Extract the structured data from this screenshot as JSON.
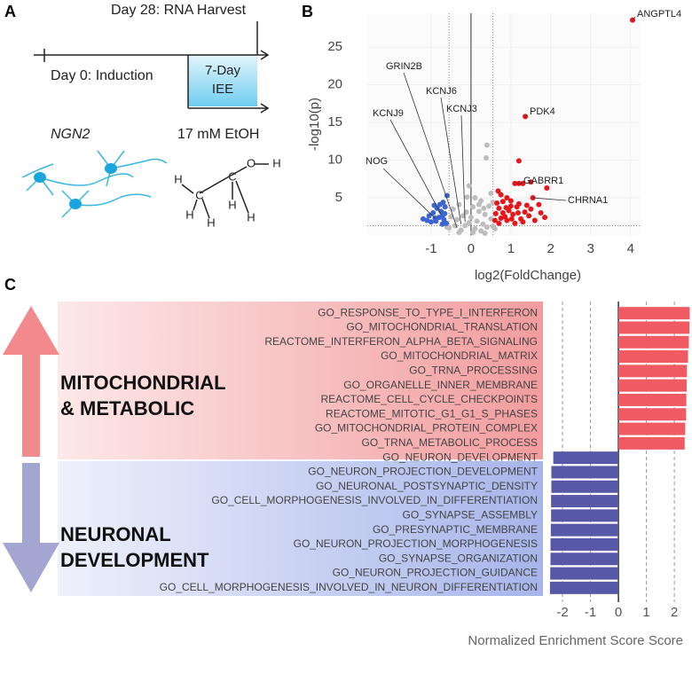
{
  "panel_labels": [
    "A",
    "B",
    "C"
  ],
  "panel_a": {
    "harvest": "Day 28: RNA Harvest",
    "induction": "Day 0: Induction",
    "iee_lines": [
      "7-Day",
      "IEE"
    ],
    "cell_line": "NGN2",
    "treatment": "17 mM EtOH",
    "atoms": [
      "O",
      "H",
      "H",
      "C",
      "H",
      "C",
      "H",
      "H",
      "H"
    ]
  },
  "chart_data": [
    {
      "type": "scatter",
      "xlabel": "log2(FoldChange)",
      "ylabel": "-log10(p)",
      "xlim": [
        -2.6,
        4.25
      ],
      "ylim": [
        0,
        29.5
      ],
      "xticks": [
        -1,
        0,
        1,
        2,
        3,
        4
      ],
      "yticks": [
        5,
        10,
        15,
        20,
        25
      ],
      "grid": true,
      "threshold_x": [
        -0.55,
        0.55
      ],
      "threshold_y": 1.3,
      "series": [
        {
          "color": "#bdbdbd",
          "x": [
            0.4,
            0.38,
            -0.05,
            0.1,
            0.25,
            0.5,
            -0.1,
            -0.3,
            -0.45,
            0.05,
            0.2,
            0.35,
            0.45,
            -0.2,
            -0.35,
            -0.5,
            0.15,
            0.3,
            0.5,
            -0.15,
            0.0,
            0.1,
            -0.25,
            0.25,
            0.4,
            -0.4,
            -0.55,
            0.55,
            0.05,
            -0.05,
            0.2,
            -0.12,
            0.32,
            0.55,
            -0.6,
            0.6,
            -0.3,
            0.35
          ],
          "y": [
            12.0,
            10.3,
            6.6,
            5.0,
            4.6,
            5.6,
            5.1,
            4.1,
            3.5,
            3.8,
            3.2,
            2.8,
            3.9,
            2.6,
            2.1,
            2.5,
            1.9,
            1.5,
            2.2,
            1.3,
            2.4,
            0.9,
            0.7,
            0.6,
            1.1,
            1.3,
            1.0,
            1.2,
            0.4,
            1.7,
            4.1,
            3.1,
            3.6,
            4.4,
            1.1,
            0.9,
            0.4,
            0.3
          ]
        },
        {
          "color": "#3a64d0",
          "x": [
            -0.62,
            -0.68,
            -0.71,
            -0.75,
            -0.8,
            -0.85,
            -0.9,
            -0.95,
            -1.0,
            -1.05,
            -1.1,
            -0.65,
            -0.7,
            -0.6,
            -0.78,
            -0.88,
            -1.2,
            -0.72,
            -0.92,
            -0.66
          ],
          "y": [
            1.6,
            2.1,
            2.7,
            3.2,
            2.4,
            3.6,
            2.3,
            3.0,
            1.8,
            2.6,
            2.0,
            3.8,
            4.4,
            5.3,
            4.1,
            1.9,
            2.2,
            1.5,
            4.0,
            2.9
          ]
        },
        {
          "color": "#e8161b",
          "x": [
            4.05,
            1.36,
            1.2,
            1.1,
            1.2,
            1.3,
            1.5,
            1.9,
            0.75,
            0.9,
            1.0,
            1.55,
            1.7,
            0.65,
            0.7,
            0.8,
            0.85,
            0.95,
            1.05,
            1.15,
            1.25,
            1.35,
            1.45,
            1.6,
            1.75,
            0.6,
            0.7,
            0.8,
            0.9,
            1.0,
            1.1,
            1.2,
            1.3,
            1.4,
            1.5,
            0.62,
            0.75,
            0.88,
            1.02,
            1.18,
            0.68,
            1.85
          ],
          "y": [
            28.6,
            15.8,
            9.9,
            6.9,
            6.9,
            6.9,
            7.1,
            6.3,
            5.4,
            5.0,
            4.6,
            5.0,
            4.1,
            4.3,
            3.6,
            3.0,
            2.5,
            3.3,
            2.8,
            3.8,
            2.2,
            3.1,
            2.6,
            2.0,
            3.0,
            2.0,
            1.6,
            4.5,
            2.0,
            3.9,
            1.6,
            4.2,
            1.8,
            4.0,
            3.5,
            2.9,
            2.3,
            3.7,
            2.2,
            3.0,
            5.9,
            2.4
          ]
        }
      ],
      "annotations": [
        {
          "text": "ANGPTL4",
          "x": 4.05,
          "y": 28.6
        },
        {
          "text": "PDK4",
          "x": 1.36,
          "y": 15.8
        },
        {
          "text": "GRIN2B",
          "x": -0.35,
          "y": 1.0
        },
        {
          "text": "KCNJ6",
          "x": -0.25,
          "y": 1.5
        },
        {
          "text": "KCNJ3",
          "x": -0.15,
          "y": 1.8
        },
        {
          "text": "KCNJ9",
          "x": -0.75,
          "y": 2.8
        },
        {
          "text": "NOG",
          "x": -0.9,
          "y": 2.3
        },
        {
          "text": "GABRR1",
          "x": 1.15,
          "y": 6.9
        },
        {
          "text": "CHRNA1",
          "x": 1.55,
          "y": 5.0
        }
      ]
    },
    {
      "type": "barh",
      "xlabel": "Normalized Enrichment Score  Score",
      "xlim": [
        -2.7,
        2.6
      ],
      "xticks": [
        -2,
        -1,
        0,
        1,
        2
      ],
      "grid": true,
      "groups": [
        {
          "lines": [
            "MITOCHONDRIAL",
            "& METABOLIC"
          ],
          "color": "#ef5a63"
        },
        {
          "lines": [
            "NEURONAL",
            "DEVELOPMENT"
          ],
          "color": "#5858a8"
        }
      ],
      "categories": [
        "GO_RESPONSE_TO_TYPE_I_INTERFERON",
        "GO_MITOCHONDRIAL_TRANSLATION",
        "REACTOME_INTERFERON_ALPHA_BETA_SIGNALING",
        "GO_MITOCHONDRIAL_MATRIX",
        "GO_TRNA_PROCESSING",
        "GO_ORGANELLE_INNER_MEMBRANE",
        "REACTOME_CELL_CYCLE_CHECKPOINTS",
        "REACTOME_MITOTIC_G1_G1_S_PHASES",
        "GO_MITOCHONDRIAL_PROTEIN_COMPLEX",
        "GO_TRNA_METABOLIC_PROCESS",
        "GO_NEURON_DEVELOPMENT",
        "GO_NEURON_PROJECTION_DEVELOPMENT",
        "GO_NEURONAL_POSTSYNAPTIC_DENSITY",
        "GO_CELL_MORPHOGENESIS_INVOLVED_IN_DIFFERENTIATION",
        "GO_SYNAPSE_ASSEMBLY",
        "GO_PRESYNAPTIC_MEMBRANE",
        "GO_NEURON_PROJECTION_MORPHOGENESIS",
        "GO_SYNAPSE_ORGANIZATION",
        "GO_NEURON_PROJECTION_GUIDANCE",
        "GO_CELL_MORPHOGENESIS_INVOLVED_IN_NEURON_DIFFERENTIATION"
      ],
      "values": [
        2.55,
        2.54,
        2.52,
        2.49,
        2.45,
        2.44,
        2.43,
        2.42,
        2.39,
        2.37,
        -2.33,
        -2.4,
        -2.4,
        -2.41,
        -2.41,
        -2.42,
        -2.43,
        -2.43,
        -2.44,
        -2.45
      ]
    }
  ]
}
